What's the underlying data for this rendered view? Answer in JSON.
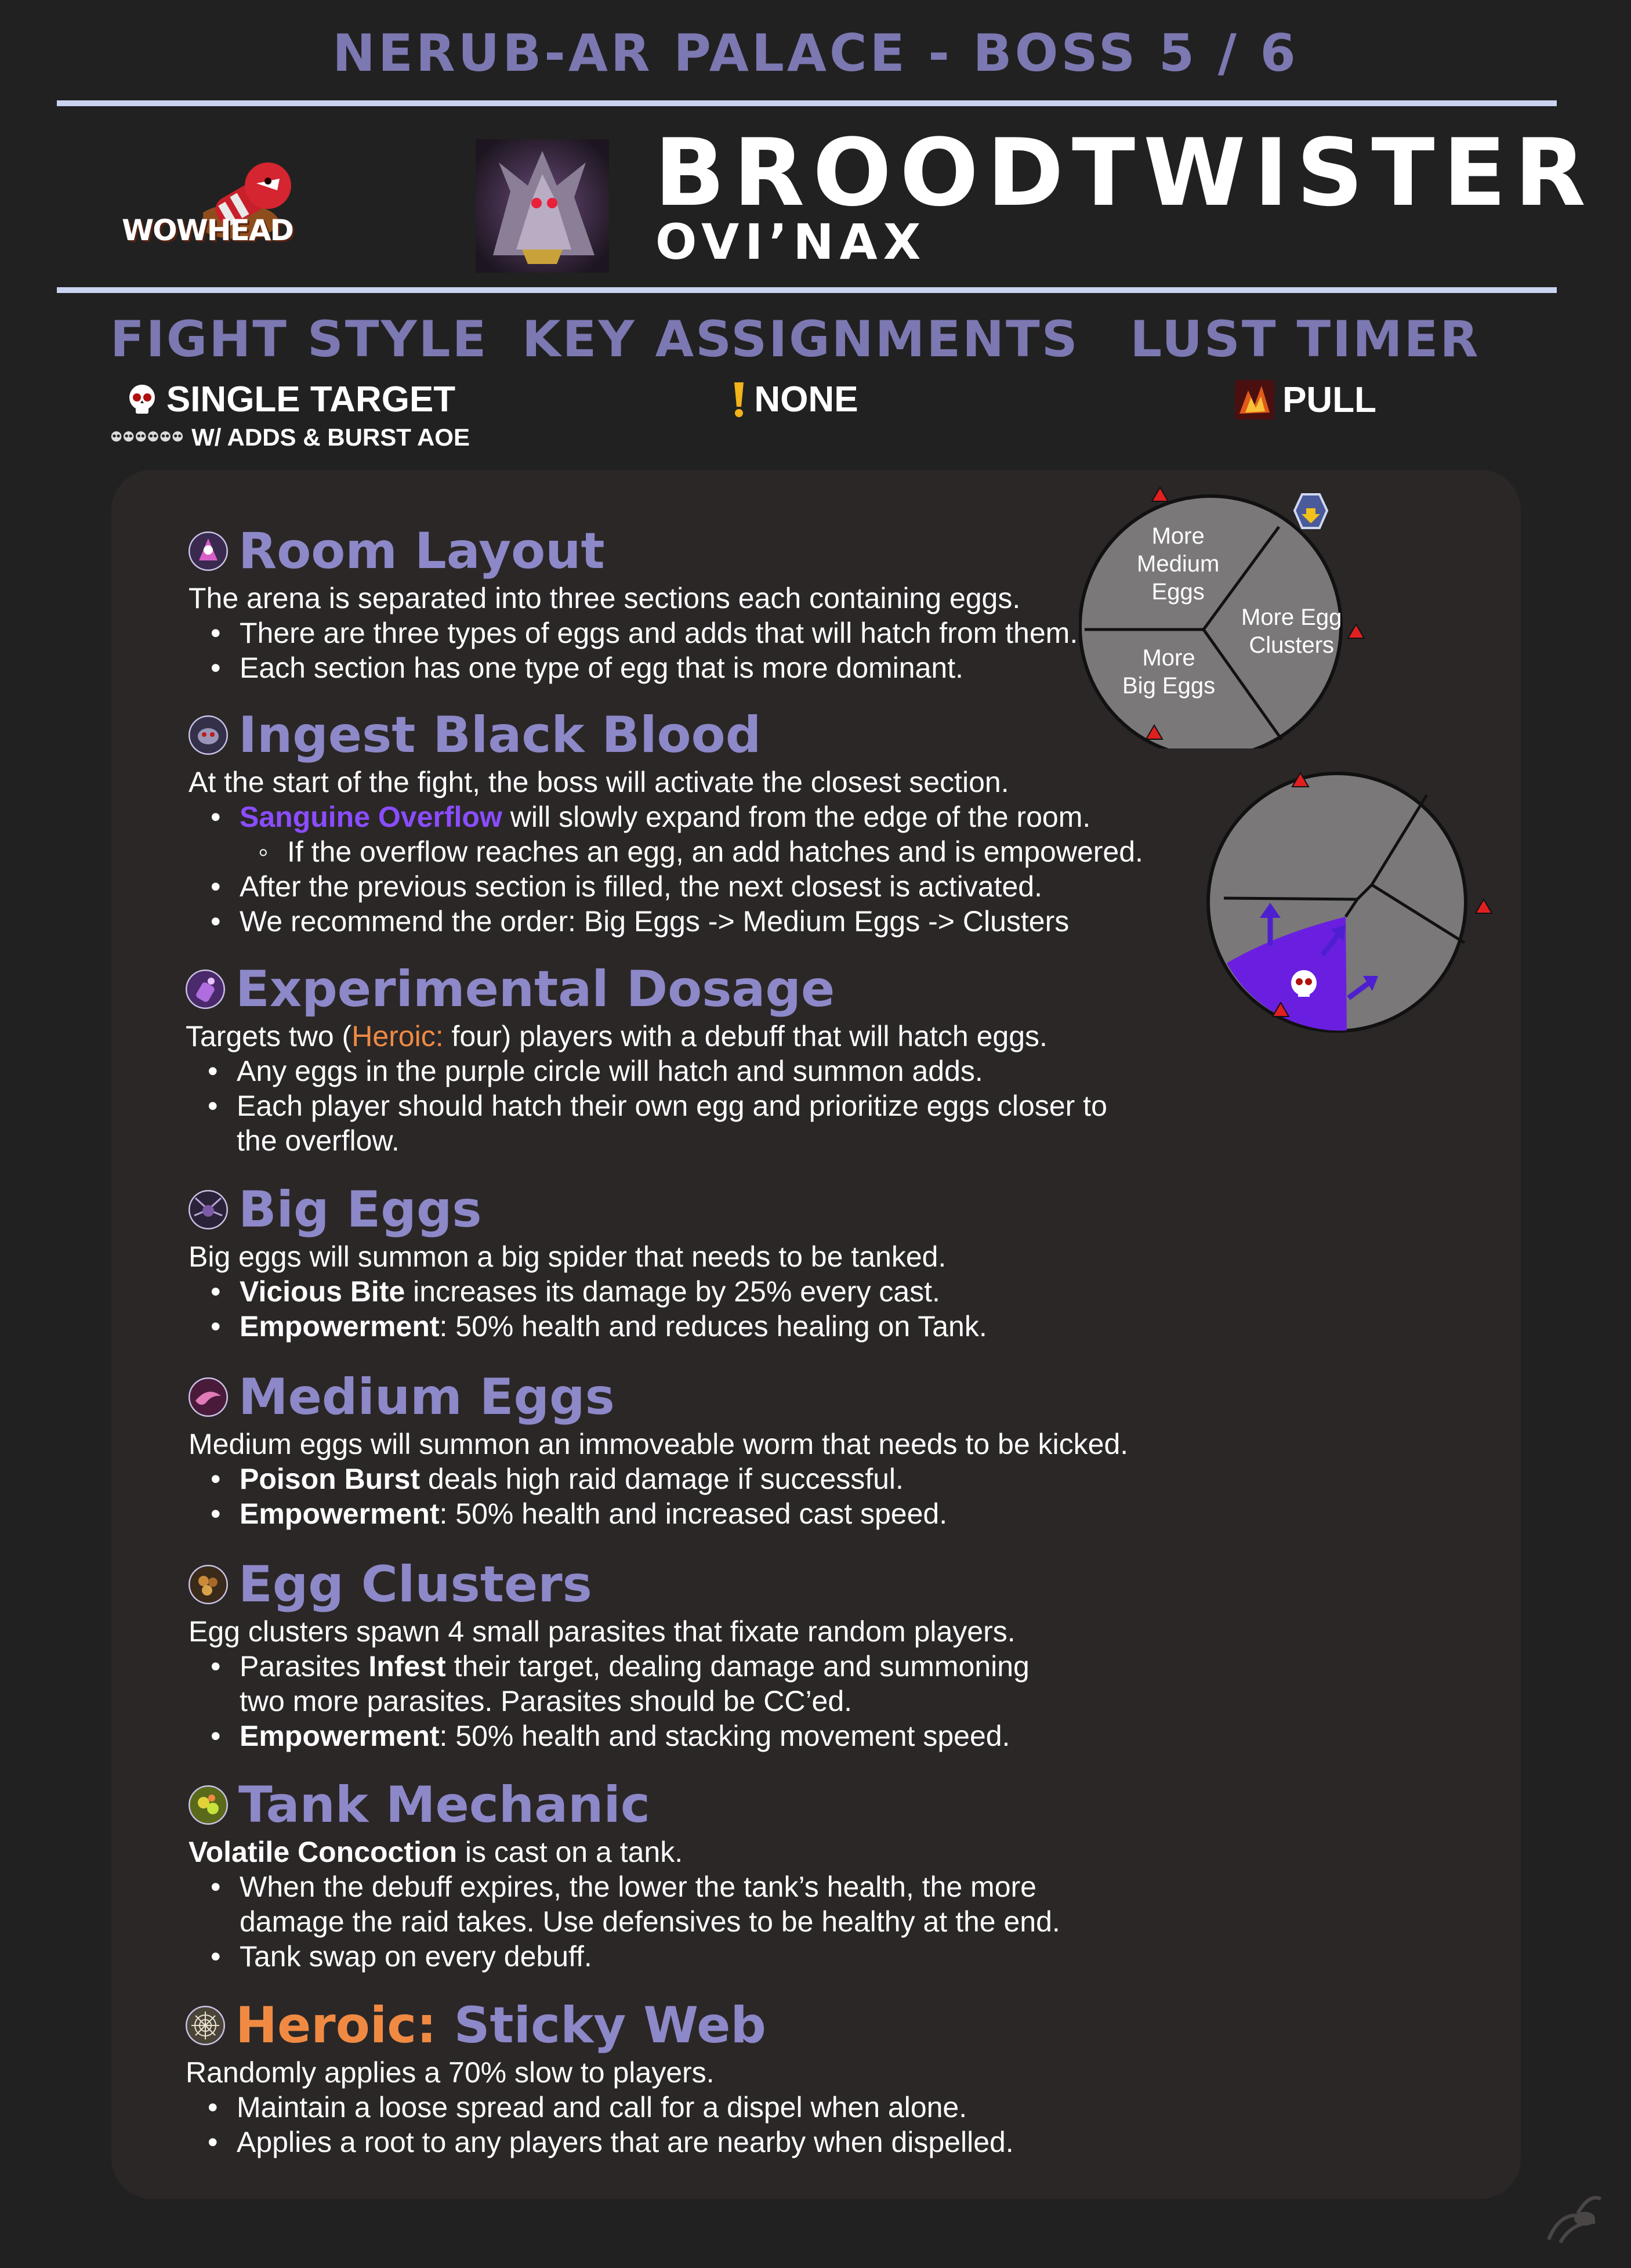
{
  "header": {
    "banner": "NERUB-AR PALACE - BOSS 5 / 6",
    "logo_text": "WOWHEAD",
    "boss_name": "BROODTWISTER",
    "boss_subtitle": "OVI’NAX"
  },
  "info": {
    "fight_style": {
      "heading": "FIGHT STYLE",
      "value": "SINGLE TARGET",
      "sub": "W/ ADDS & BURST AOE",
      "icon": "skull-icon"
    },
    "key_assignments": {
      "heading": "KEY ASSIGNMENTS",
      "value": "NONE",
      "icon": "exclamation-icon"
    },
    "lust_timer": {
      "heading": "LUST TIMER",
      "value": "PULL",
      "icon": "bloodlust-icon"
    }
  },
  "sections": {
    "room_layout": {
      "title": "Room Layout",
      "intro": "The arena is separated into three sections each containing eggs.",
      "bullets": [
        "There are three types of eggs and adds that will hatch from them.",
        "Each section has one type of egg that is more dominant."
      ]
    },
    "ingest_black_blood": {
      "title": "Ingest Black Blood",
      "intro": "At the start of the fight, the boss will activate the closest section.",
      "b1_spell": "Sanguine Overflow",
      "b1_rest": " will slowly expand from the edge of the room.",
      "b1_sub": "If the overflow reaches an egg, an add hatches and is empowered.",
      "b2": "After the previous section is filled, the next closest is activated.",
      "b3": "We recommend the order: Big Eggs -> Medium Eggs -> Clusters"
    },
    "experimental_dosage": {
      "title": "Experimental Dosage",
      "intro_a": "Targets two (",
      "intro_hc": "Heroic:",
      "intro_b": " four) players with a debuff that will hatch eggs.",
      "b1": "Any eggs in the purple circle will hatch and summon adds.",
      "b2_l1": "Each player should hatch their own egg and prioritize eggs closer to",
      "b2_l2": "the overflow."
    },
    "big_eggs": {
      "title": "Big Eggs",
      "intro": "Big eggs will summon a big spider that needs to be tanked.",
      "b1_bold": "Vicious Bite",
      "b1_rest": " increases its damage by 25% every cast.",
      "b2_bold": "Empowerment",
      "b2_rest": ": 50% health and reduces healing on Tank."
    },
    "medium_eggs": {
      "title": "Medium Eggs",
      "intro": "Medium eggs will summon an immoveable worm that needs to be kicked.",
      "b1_bold": "Poison Burst",
      "b1_rest": " deals high raid damage if successful.",
      "b2_bold": "Empowerment",
      "b2_rest": ": 50% health and increased cast speed."
    },
    "egg_clusters": {
      "title": "Egg Clusters",
      "intro": "Egg clusters spawn 4 small parasites that fixate random players.",
      "b1_a": "Parasites ",
      "b1_bold": "Infest",
      "b1_b": " their target, dealing damage and summoning",
      "b1_l2": "two more parasites. Parasites should be CC’ed.",
      "b2_bold": "Empowerment",
      "b2_rest": ": 50% health and stacking movement speed."
    },
    "tank_mechanic": {
      "title": "Tank Mechanic",
      "intro_bold": "Volatile Concoction",
      "intro_rest": " is cast on a tank.",
      "b1_l1": "When the debuff expires, the lower the tank’s health, the more",
      "b1_l2": "damage the raid takes. Use defensives to be healthy at the end.",
      "b2": "Tank swap on every debuff."
    },
    "sticky_web": {
      "title_hc": "Heroic:",
      "title_rest": " Sticky Web",
      "intro": "Randomly applies a 70% slow to players.",
      "b1": "Maintain a loose spread and call for a dispel when alone.",
      "b2": "Applies a root to any players that are nearby when dispelled."
    }
  },
  "map": {
    "medium_l1": "More",
    "medium_l2": "Medium",
    "medium_l3": "Eggs",
    "cluster_l1": "More Egg",
    "cluster_l2": "Clusters",
    "big_l1": "More",
    "big_l2": "Big Eggs"
  },
  "colors": {
    "heading": "#7c78b2",
    "title": "#8d88c8",
    "heroic": "#f08a43",
    "spell": "#8a4dff",
    "background": "#222121",
    "panel": "#2b2727"
  }
}
